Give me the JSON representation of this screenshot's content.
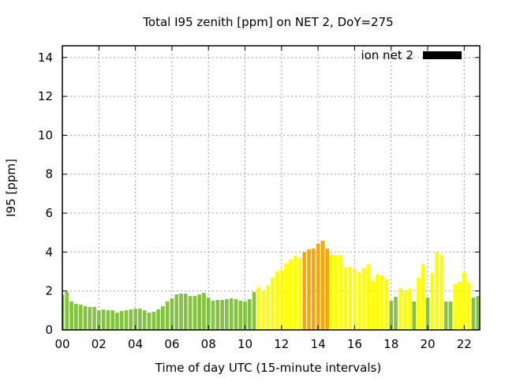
{
  "chart_data": {
    "type": "bar",
    "title": "Total I95 zenith [ppm] on NET 2, DoY=275",
    "xlabel": "Time of day UTC (15-minute intervals)",
    "ylabel": "I95 [ppm]",
    "xlim": [
      0,
      22.85
    ],
    "ylim": [
      0,
      14.6
    ],
    "grid": true,
    "legend": {
      "label": "ion net 2",
      "placement": "top-right",
      "color": "#000000"
    },
    "x_ticks": [
      0,
      2,
      4,
      6,
      8,
      10,
      12,
      14,
      16,
      18,
      20,
      22
    ],
    "x_tick_labels": [
      "00",
      "02",
      "04",
      "06",
      "08",
      "10",
      "12",
      "14",
      "16",
      "18",
      "20",
      "22"
    ],
    "y_ticks": [
      0,
      2,
      4,
      6,
      8,
      10,
      12,
      14
    ],
    "y_tick_labels": [
      "0",
      "2",
      "4",
      "6",
      "8",
      "10",
      "12",
      "14"
    ],
    "bin_hours": 0.25,
    "color_thresholds": {
      "low_below": 2,
      "high_above": 4
    },
    "colors": {
      "low": "#83c341",
      "mid": "#ffff00",
      "high": "#ffa500"
    },
    "values": [
      1.8,
      1.96,
      1.46,
      1.34,
      1.3,
      1.22,
      1.18,
      1.18,
      1.01,
      1.05,
      1.01,
      1.01,
      0.89,
      0.97,
      1.01,
      1.05,
      1.09,
      1.09,
      1.01,
      0.89,
      0.93,
      1.05,
      1.22,
      1.46,
      1.62,
      1.82,
      1.86,
      1.86,
      1.74,
      1.74,
      1.82,
      1.9,
      1.66,
      1.5,
      1.54,
      1.54,
      1.58,
      1.62,
      1.58,
      1.5,
      1.46,
      1.58,
      1.95,
      2.19,
      2.0,
      2.27,
      2.68,
      3.0,
      3.08,
      3.41,
      3.61,
      3.81,
      3.69,
      4.01,
      4.14,
      4.18,
      4.42,
      4.58,
      4.18,
      3.85,
      3.85,
      3.85,
      3.2,
      3.24,
      3.12,
      2.96,
      3.16,
      3.36,
      2.51,
      2.84,
      2.8,
      2.59,
      1.5,
      1.7,
      2.15,
      2.0,
      2.11,
      1.46,
      2.68,
      3.36,
      1.66,
      2.92,
      3.97,
      3.85,
      1.46,
      1.46,
      2.35,
      2.47,
      2.92,
      2.43,
      1.66,
      1.74
    ]
  }
}
